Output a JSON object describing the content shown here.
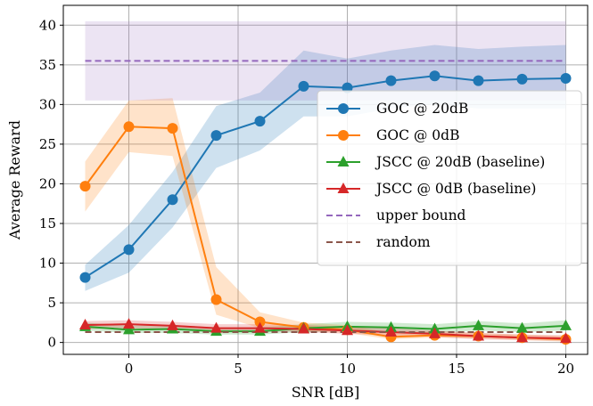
{
  "chart_data": {
    "type": "line",
    "xlabel": "SNR [dB]",
    "ylabel": "Average Reward",
    "xlim": [
      -3,
      21
    ],
    "ylim": [
      -1.5,
      42.5
    ],
    "xticks": [
      0,
      5,
      10,
      15,
      20
    ],
    "yticks": [
      0,
      5,
      10,
      15,
      20,
      25,
      30,
      35,
      40
    ],
    "grid": true,
    "legend_position": "center-right",
    "x": [
      -2,
      0,
      2,
      4,
      6,
      8,
      10,
      12,
      14,
      16,
      18,
      20
    ],
    "series": [
      {
        "name": "GOC @ 20dB",
        "color": "#1f77b4",
        "marker": "circle",
        "line": "solid",
        "values": [
          8.2,
          11.7,
          18.0,
          26.1,
          27.9,
          32.3,
          32.1,
          33.0,
          33.6,
          33.0,
          33.2,
          33.3
        ],
        "lower": [
          6.5,
          8.8,
          14.5,
          22.0,
          24.2,
          28.5,
          28.5,
          29.5,
          30.0,
          29.5,
          29.5,
          29.5
        ],
        "upper": [
          9.8,
          14.8,
          21.5,
          29.8,
          31.5,
          36.8,
          35.8,
          36.8,
          37.5,
          37.0,
          37.3,
          37.5
        ]
      },
      {
        "name": "GOC @ 0dB",
        "color": "#ff7f0e",
        "marker": "circle",
        "line": "solid",
        "values": [
          19.7,
          27.2,
          27.0,
          5.4,
          2.6,
          1.9,
          1.6,
          0.7,
          0.9,
          0.8,
          0.6,
          0.4
        ],
        "lower": [
          16.5,
          24.0,
          23.5,
          3.5,
          1.8,
          1.4,
          1.2,
          0.4,
          0.6,
          0.5,
          0.3,
          0.1
        ],
        "upper": [
          22.8,
          30.5,
          30.8,
          9.5,
          3.8,
          2.5,
          2.2,
          1.2,
          1.4,
          1.2,
          1.0,
          0.8
        ]
      },
      {
        "name": "JSCC @ 20dB (baseline)",
        "color": "#2ca02c",
        "marker": "triangle",
        "line": "solid",
        "values": [
          2.0,
          1.6,
          1.7,
          1.4,
          1.4,
          1.8,
          2.0,
          1.9,
          1.7,
          2.1,
          1.8,
          2.1
        ],
        "lower": [
          1.5,
          1.2,
          1.2,
          1.0,
          1.0,
          1.3,
          1.5,
          1.4,
          1.2,
          1.5,
          1.3,
          1.5
        ],
        "upper": [
          2.5,
          2.1,
          2.2,
          1.9,
          1.9,
          2.3,
          2.6,
          2.5,
          2.3,
          2.7,
          2.4,
          2.8
        ]
      },
      {
        "name": "JSCC @ 0dB (baseline)",
        "color": "#d62728",
        "marker": "triangle",
        "line": "solid",
        "values": [
          2.2,
          2.3,
          2.1,
          1.8,
          1.8,
          1.7,
          1.5,
          1.3,
          1.1,
          0.8,
          0.6,
          0.5
        ],
        "lower": [
          1.7,
          1.8,
          1.6,
          1.4,
          1.4,
          1.3,
          1.1,
          0.9,
          0.7,
          0.4,
          0.3,
          0.2
        ],
        "upper": [
          2.7,
          2.8,
          2.6,
          2.3,
          2.3,
          2.2,
          2.0,
          1.8,
          1.5,
          1.2,
          1.0,
          0.9
        ]
      },
      {
        "name": "upper bound",
        "color": "#9467bd",
        "marker": "none",
        "line": "dashed",
        "values": [
          35.5,
          35.5,
          35.5,
          35.5,
          35.5,
          35.5,
          35.5,
          35.5,
          35.5,
          35.5,
          35.5,
          35.5
        ],
        "lower": [
          30.5,
          30.5,
          30.5,
          30.5,
          30.5,
          30.5,
          30.5,
          30.5,
          30.5,
          30.5,
          30.5,
          30.5
        ],
        "upper": [
          40.5,
          40.5,
          40.5,
          40.5,
          40.5,
          40.5,
          40.5,
          40.5,
          40.5,
          40.5,
          40.5,
          40.5
        ]
      },
      {
        "name": "random",
        "color": "#8c564b",
        "marker": "none",
        "line": "dashed",
        "values": [
          1.3,
          1.3,
          1.3,
          1.3,
          1.3,
          1.3,
          1.3,
          1.3,
          1.3,
          1.3,
          1.3,
          1.3
        ]
      }
    ]
  }
}
